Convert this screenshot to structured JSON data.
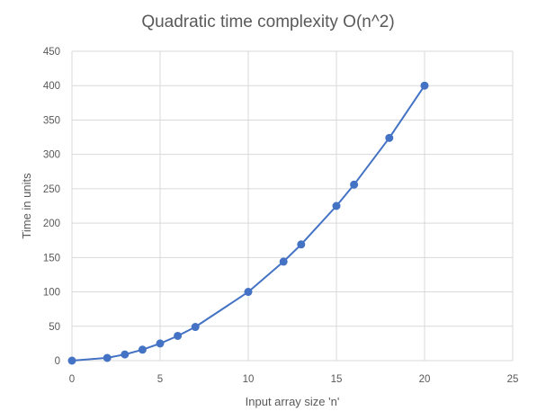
{
  "chart_data": {
    "type": "scatter",
    "title": "Quadratic time complexity O(n^2)",
    "xlabel": "Input array size 'n'",
    "ylabel": "Time in units",
    "xlim": [
      0,
      25
    ],
    "ylim": [
      0,
      450
    ],
    "xticks": [
      0,
      5,
      10,
      15,
      20,
      25
    ],
    "yticks": [
      0,
      50,
      100,
      150,
      200,
      250,
      300,
      350,
      400,
      450
    ],
    "grid": true,
    "legend": "none",
    "series": [
      {
        "color": "#4472c4",
        "x": [
          0,
          2,
          3,
          4,
          5,
          6,
          7,
          10,
          12,
          13,
          15,
          16,
          18,
          20
        ],
        "y": [
          0,
          4,
          9,
          16,
          25,
          36,
          49,
          100,
          144,
          169,
          225,
          256,
          324,
          400
        ]
      }
    ]
  }
}
